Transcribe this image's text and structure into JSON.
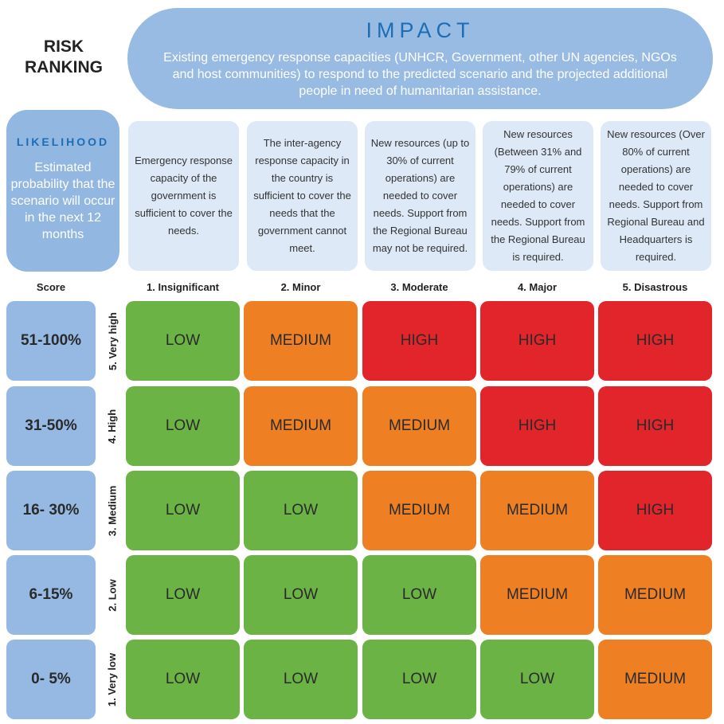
{
  "title": "RISK RANKING",
  "impact": {
    "title": "IMPACT",
    "description": "Existing emergency response capacities (UNHCR, Government, other UN agencies, NGOs and host communities) to respond to the predicted scenario and the projected additional people in need of humanitarian assistance."
  },
  "likelihood": {
    "title": "LIKELIHOOD",
    "description": "Estimated probability that the scenario will occur in the next 12 months"
  },
  "impact_descriptions": [
    "Emergency response capacity of the government is sufficient to cover the needs.",
    "The inter-agency response capacity in the country is sufficient to cover the needs that the government cannot meet.",
    "New resources (up to 30% of current operations) are needed to cover needs. Support from the Regional Bureau may not be required.",
    "New resources (Between 31% and 79% of current operations) are needed to cover needs. Support from the Regional Bureau is required.",
    "New resources (Over 80% of current operations) are needed to cover needs. Support from Regional Bureau and Headquarters is required."
  ],
  "score_header": "Score",
  "impact_levels": [
    "1. Insignificant",
    "2. Minor",
    "3. Moderate",
    "4. Major",
    "5. Disastrous"
  ],
  "rows": [
    {
      "score": "51-100%",
      "likelihood": "5. Very high",
      "cells": [
        "LOW",
        "MEDIUM",
        "HIGH",
        "HIGH",
        "HIGH"
      ]
    },
    {
      "score": "31-50%",
      "likelihood": "4. High",
      "cells": [
        "LOW",
        "MEDIUM",
        "MEDIUM",
        "HIGH",
        "HIGH"
      ]
    },
    {
      "score": "16- 30%",
      "likelihood": "3. Medium",
      "cells": [
        "LOW",
        "LOW",
        "MEDIUM",
        "MEDIUM",
        "HIGH"
      ]
    },
    {
      "score": "6-15%",
      "likelihood": "2. Low",
      "cells": [
        "LOW",
        "LOW",
        "LOW",
        "MEDIUM",
        "MEDIUM"
      ]
    },
    {
      "score": "0- 5%",
      "likelihood": "1. Very low",
      "cells": [
        "LOW",
        "LOW",
        "LOW",
        "LOW",
        "MEDIUM"
      ]
    }
  ],
  "colors": {
    "LOW": "#6bb345",
    "MEDIUM": "#ee8023",
    "HIGH": "#e2242b",
    "score_bg": "#95b9e3",
    "accent": "#1d6db6"
  }
}
